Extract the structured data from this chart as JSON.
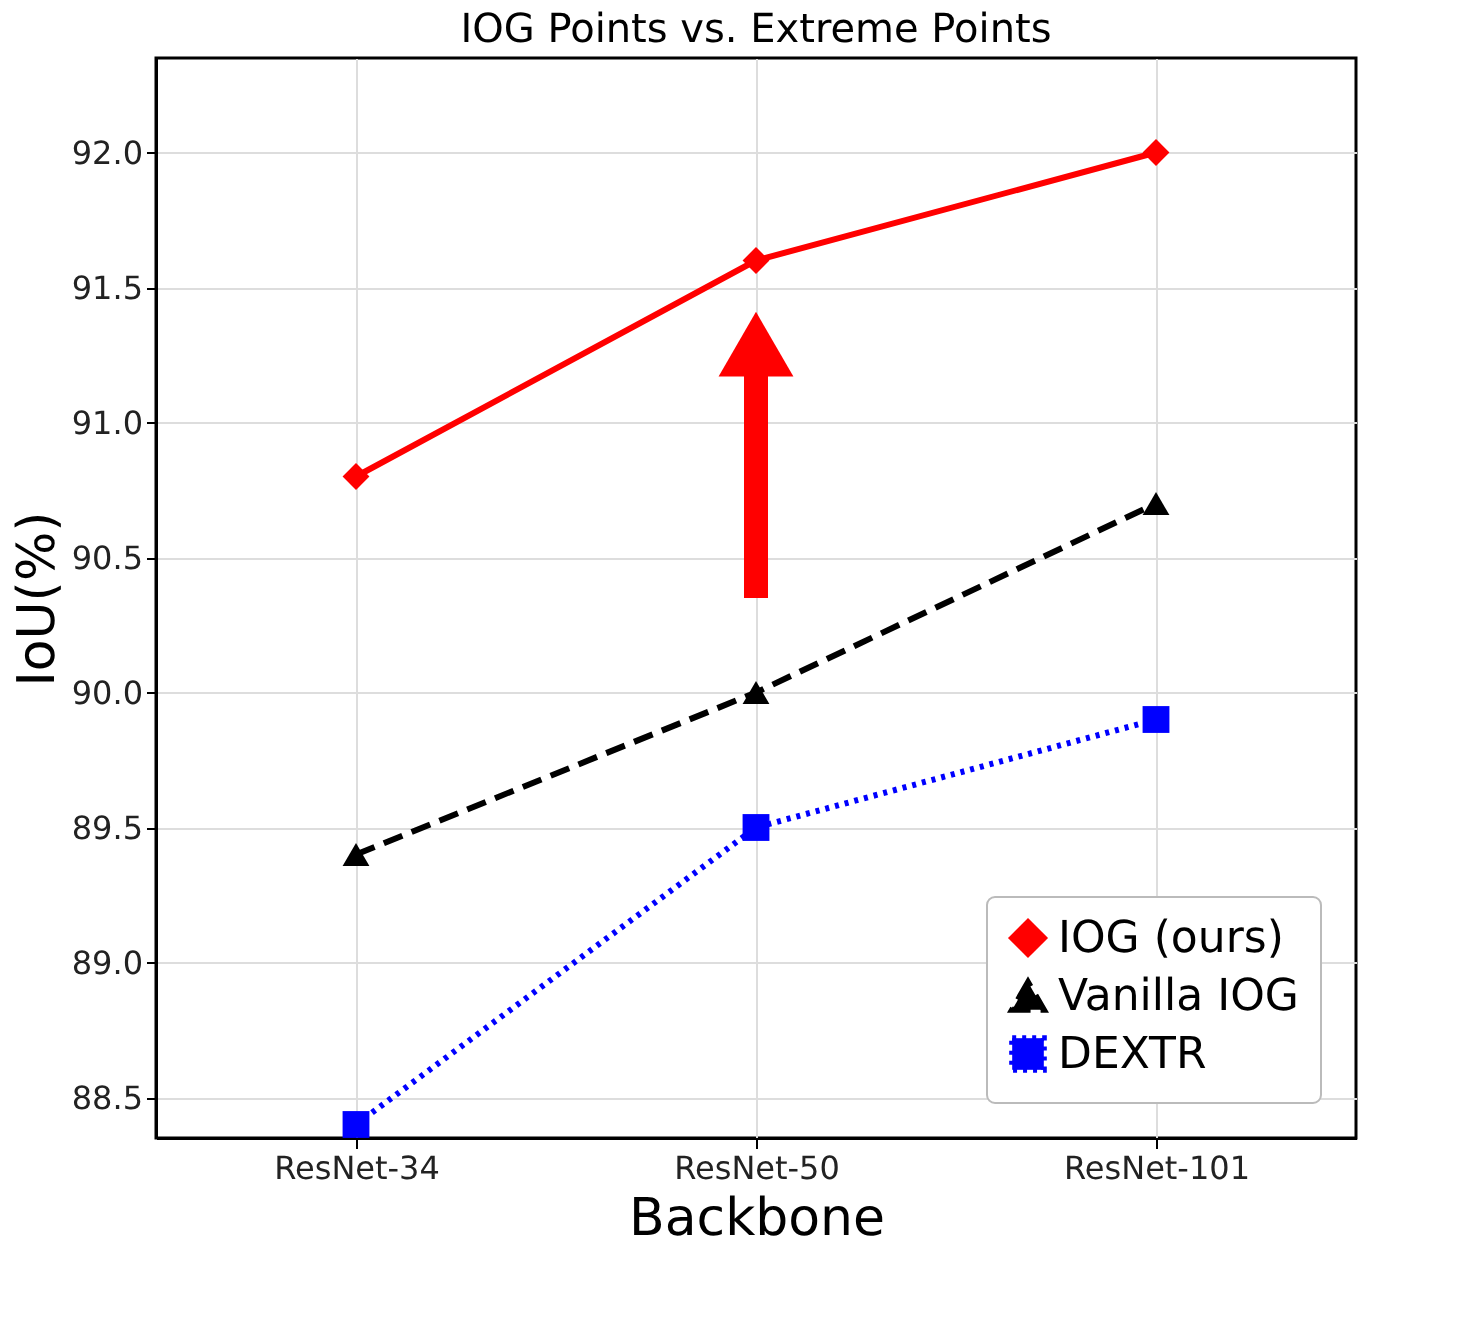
{
  "chart_data": {
    "type": "line",
    "title": "IOG Points vs. Extreme Points",
    "xlabel": "Backbone",
    "ylabel": "IoU(%)",
    "categories": [
      "ResNet-34",
      "ResNet-50",
      "ResNet-101"
    ],
    "series": [
      {
        "name": "IOG (ours)",
        "color": "#ff0000",
        "values": [
          90.8,
          91.6,
          92.0
        ],
        "marker": "diamond",
        "line_style": "solid"
      },
      {
        "name": "Vanilla IOG",
        "color": "#000000",
        "values": [
          89.4,
          90.0,
          90.7
        ],
        "marker": "triangle",
        "line_style": "dashed"
      },
      {
        "name": "DEXTR",
        "color": "#0000ff",
        "values": [
          88.4,
          89.5,
          89.9
        ],
        "marker": "square",
        "line_style": "dotted"
      }
    ],
    "ylim": [
      88.35,
      92.35
    ],
    "yticks": [
      88.5,
      {
        "value": 89,
        "label": "89.0"
      },
      89.5,
      {
        "value": 90,
        "label": "90.0"
      },
      90.5,
      {
        "value": 91,
        "label": "91.0"
      },
      91.5,
      {
        "value": 92,
        "label": "92.0"
      }
    ],
    "grid": true,
    "legend": "bottom right"
  }
}
